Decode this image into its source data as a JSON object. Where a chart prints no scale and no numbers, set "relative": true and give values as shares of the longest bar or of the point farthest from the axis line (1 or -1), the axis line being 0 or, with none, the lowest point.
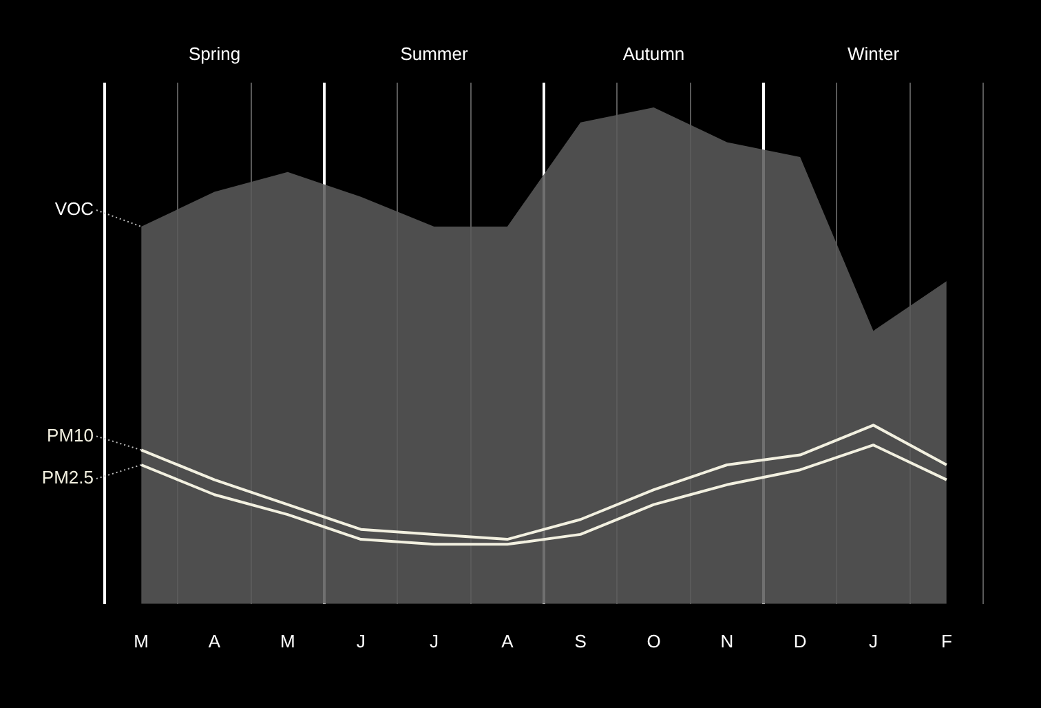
{
  "chart_data": {
    "type": "line",
    "relative": true,
    "categories": [
      "M",
      "A",
      "M",
      "J",
      "J",
      "A",
      "S",
      "O",
      "N",
      "D",
      "J",
      "F"
    ],
    "series": [
      {
        "name": "VOC",
        "type": "area",
        "color": "#5a5a5a",
        "values": [
          0.76,
          0.83,
          0.87,
          0.82,
          0.76,
          0.76,
          0.97,
          1,
          0.93,
          0.9,
          0.55,
          0.65
        ]
      },
      {
        "name": "PM10",
        "color": "#f2f0e0",
        "values": [
          0.31,
          0.25,
          0.2,
          0.15,
          0.14,
          0.13,
          0.17,
          0.23,
          0.28,
          0.3,
          0.36,
          0.28
        ]
      },
      {
        "name": "PM2.5",
        "color": "#f2f0e0",
        "values": [
          0.28,
          0.22,
          0.18,
          0.13,
          0.12,
          0.12,
          0.14,
          0.2,
          0.24,
          0.27,
          0.32,
          0.25
        ]
      }
    ],
    "annotations": [
      "Spring",
      "Summer",
      "Autumn",
      "Winter"
    ],
    "grid": "x",
    "legend": false,
    "marker": "none",
    "line_style": "solid"
  }
}
